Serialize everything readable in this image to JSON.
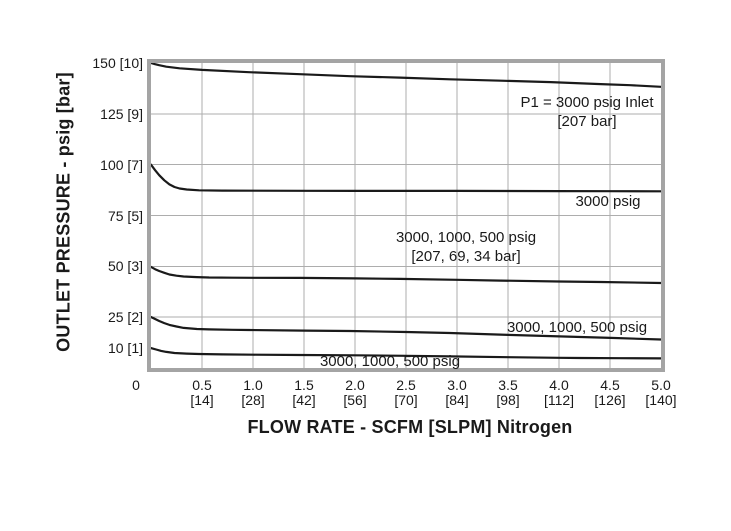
{
  "chart_data": {
    "type": "line",
    "title": "",
    "xlabel": "FLOW RATE - SCFM [SLPM] Nitrogen",
    "ylabel": "OUTLET PRESSURE - psig [bar]",
    "xlim": [
      0,
      5
    ],
    "ylim": [
      0,
      150
    ],
    "grid": true,
    "legend_position": "none",
    "colors": {
      "curve": "#1a1a1a",
      "gridline": "#adadad",
      "plot_border": "#a4a4a4",
      "background": "#ffffff",
      "text": "#1a1a1a"
    },
    "gridlines": {
      "x_values": [
        0.5,
        1.0,
        1.5,
        2.0,
        2.5,
        3.0,
        3.5,
        4.0,
        4.5
      ],
      "y_values": [
        25,
        50,
        75,
        100,
        125
      ]
    },
    "origin_label": "0",
    "y_ticks": [
      {
        "value": 150,
        "label": "150 [10]"
      },
      {
        "value": 125,
        "label": "125 [9]"
      },
      {
        "value": 100,
        "label": "100 [7]"
      },
      {
        "value": 75,
        "label": "75 [5]"
      },
      {
        "value": 50,
        "label": "50 [3]"
      },
      {
        "value": 25,
        "label": "25 [2]"
      },
      {
        "value": 10,
        "label": "10 [1]"
      }
    ],
    "x_ticks": [
      {
        "value": 0.5,
        "label": "0.5",
        "sub": "[14]"
      },
      {
        "value": 1.0,
        "label": "1.0",
        "sub": "[28]"
      },
      {
        "value": 1.5,
        "label": "1.5",
        "sub": "[42]"
      },
      {
        "value": 2.0,
        "label": "2.0",
        "sub": "[56]"
      },
      {
        "value": 2.5,
        "label": "2.5",
        "sub": "[70]"
      },
      {
        "value": 3.0,
        "label": "3.0",
        "sub": "[84]"
      },
      {
        "value": 3.5,
        "label": "3.5",
        "sub": "[98]"
      },
      {
        "value": 4.0,
        "label": "4.0",
        "sub": "[112]"
      },
      {
        "value": 4.5,
        "label": "4.5",
        "sub": "[126]"
      },
      {
        "value": 5.0,
        "label": "5.0",
        "sub": "[140]"
      }
    ],
    "series": [
      {
        "id": "set-150-psig",
        "label": "P1 = 3000 psig Inlet [207 bar]",
        "x": [
          0,
          0.04,
          0.08,
          0.15,
          0.28,
          0.5,
          0.96,
          1.46,
          1.95,
          2.44,
          2.93,
          3.43,
          3.92,
          4.41,
          4.7,
          5.0
        ],
        "y": [
          150,
          149.4,
          148.9,
          148.2,
          147.4,
          146.6,
          145.5,
          144.5,
          143.5,
          142.8,
          142.0,
          141.3,
          140.6,
          139.6,
          139.1,
          138.3
        ]
      },
      {
        "id": "set-100-psig",
        "label": "3000 psig",
        "x": [
          0,
          0.04,
          0.08,
          0.13,
          0.18,
          0.23,
          0.28,
          0.35,
          0.47,
          0.7,
          1.0,
          1.5,
          2.0,
          2.5,
          3.0,
          3.5,
          4.0,
          4.5,
          5.0
        ],
        "y": [
          100,
          97.3,
          94.8,
          92.3,
          90.3,
          89.0,
          88.3,
          87.8,
          87.4,
          87.25,
          87.2,
          87.15,
          87.1,
          87.1,
          87.1,
          87.05,
          87.0,
          86.95,
          86.9
        ]
      },
      {
        "id": "set-50-psig",
        "label": "3000, 1000, 500 psig [207, 69, 34 bar]",
        "x": [
          0,
          0.04,
          0.08,
          0.13,
          0.18,
          0.25,
          0.32,
          0.45,
          0.57,
          0.8,
          1.0,
          1.46,
          2.0,
          2.44,
          3.0,
          3.43,
          4.0,
          4.41,
          5.0
        ],
        "y": [
          49.7,
          48.6,
          47.7,
          46.8,
          46.0,
          45.4,
          45.0,
          44.7,
          44.5,
          44.4,
          44.35,
          44.3,
          44.05,
          43.8,
          43.4,
          43.0,
          42.55,
          42.3,
          41.8
        ]
      },
      {
        "id": "set-25-psig",
        "label": "3000, 1000, 500 psig",
        "x": [
          0,
          0.04,
          0.08,
          0.13,
          0.18,
          0.25,
          0.32,
          0.45,
          0.57,
          0.8,
          0.96,
          1.5,
          1.95,
          2.5,
          2.93,
          3.5,
          3.92,
          4.51,
          5.0
        ],
        "y": [
          25.1,
          24.1,
          23.1,
          22.1,
          21.2,
          20.4,
          19.7,
          19.2,
          19.0,
          18.8,
          18.7,
          18.4,
          18.2,
          17.7,
          17.2,
          16.3,
          15.7,
          14.8,
          14.0
        ]
      },
      {
        "id": "set-10-psig",
        "label": "3000, 1000, 500 psig",
        "x": [
          0,
          0.05,
          0.1,
          0.15,
          0.23,
          0.35,
          0.47,
          0.7,
          1.0,
          1.46,
          2.0,
          2.5,
          2.93,
          3.5,
          4.0,
          4.21,
          4.6,
          5.0
        ],
        "y": [
          9.8,
          9.1,
          8.4,
          7.9,
          7.4,
          7.1,
          6.9,
          6.7,
          6.55,
          6.4,
          6.25,
          6.0,
          5.7,
          5.3,
          5.0,
          4.9,
          4.8,
          4.7
        ]
      }
    ],
    "annotations": [
      {
        "lines": [
          "P1 = 3000 psig Inlet",
          "[207 bar]"
        ]
      },
      {
        "lines": [
          "3000 psig"
        ]
      },
      {
        "lines": [
          "3000, 1000, 500 psig",
          "[207, 69, 34 bar]"
        ]
      },
      {
        "lines": [
          "3000, 1000, 500 psig"
        ]
      },
      {
        "lines": [
          "3000, 1000, 500 psig"
        ]
      }
    ]
  }
}
